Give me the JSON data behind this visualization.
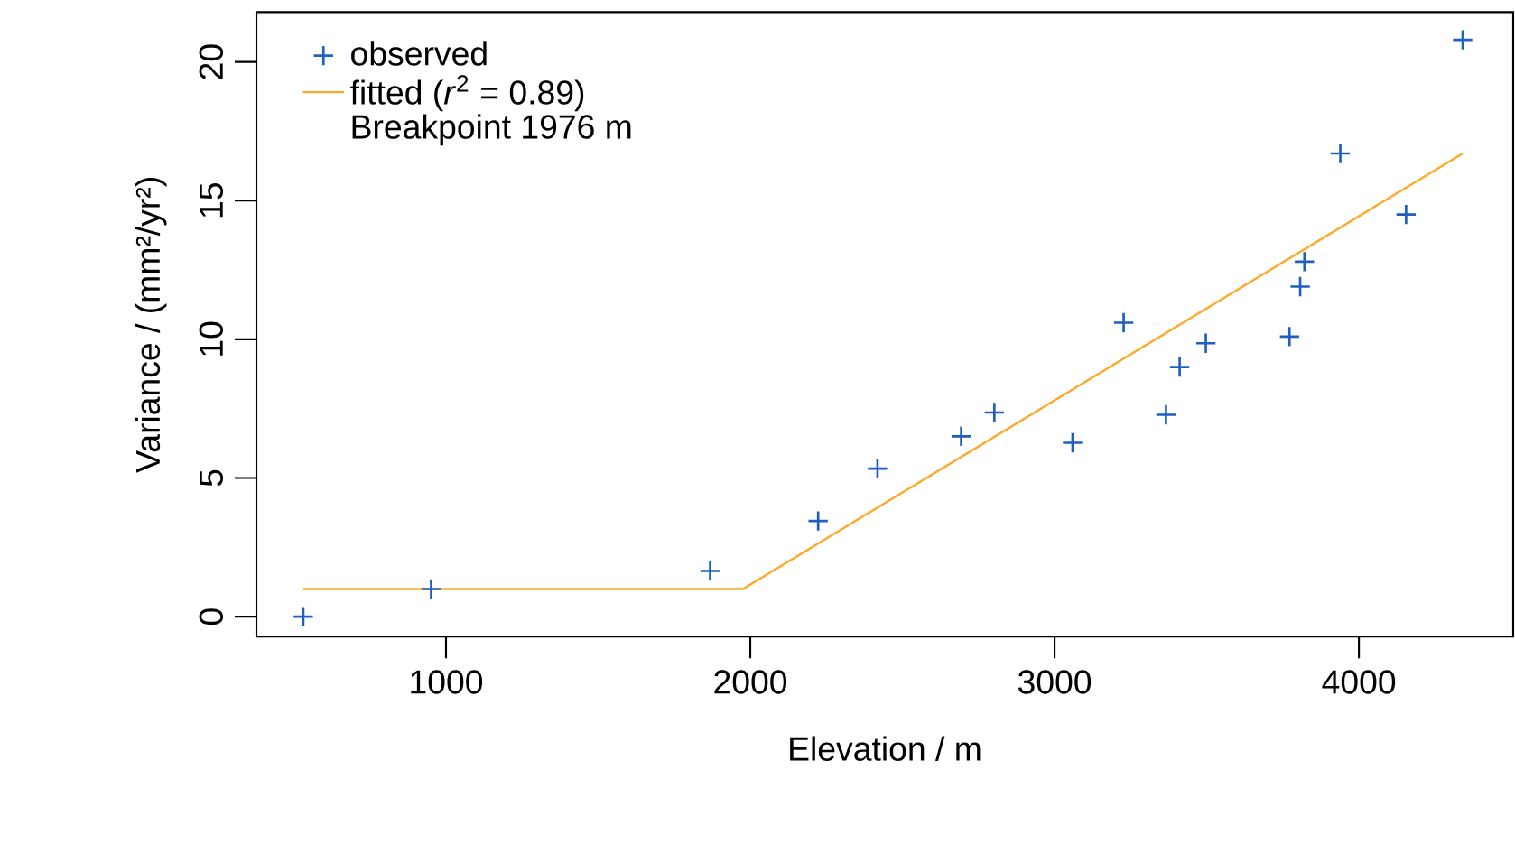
{
  "chart_data": {
    "type": "scatter",
    "xlabel": "Elevation / m",
    "ylabel": "Variance / (mm²/yr²)",
    "xlim": [
      377,
      4507
    ],
    "ylim": [
      -0.72,
      21.8
    ],
    "xticks": [
      1000,
      2000,
      3000,
      4000
    ],
    "yticks": [
      0,
      5,
      10,
      15,
      20
    ],
    "grid": false,
    "legend": "top left",
    "marker": "cross",
    "annotations": [
      "Breakpoint 1976  m"
    ],
    "series": [
      {
        "name": "observed",
        "color": "#1f5fbf",
        "x": [
          531,
          951,
          1868,
          2223,
          2418,
          2693,
          2802,
          3059,
          3227,
          3366,
          3411,
          3497,
          3772,
          3807,
          3821,
          3939,
          4155,
          4341
        ],
        "values": [
          0,
          1.0,
          1.65,
          3.45,
          5.34,
          6.5,
          7.36,
          6.27,
          10.6,
          7.28,
          9.0,
          9.86,
          10.1,
          11.9,
          12.8,
          16.7,
          14.5,
          20.8
        ]
      },
      {
        "name": "fitted (*r*$^{2}$ = 0.89)",
        "type": "line",
        "color": "#ffa726",
        "marker": "none",
        "line_style": "solid",
        "x": [
          531,
          1976,
          4341
        ],
        "values": [
          1.0,
          1.0,
          16.7
        ]
      }
    ]
  }
}
